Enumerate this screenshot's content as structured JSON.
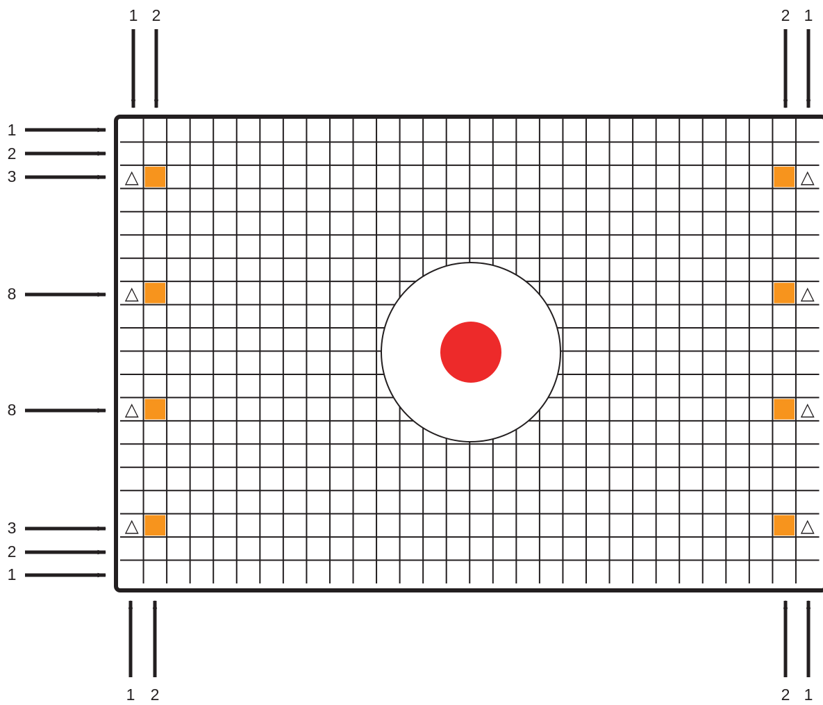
{
  "colors": {
    "grid_line": "#231f20",
    "frame": "#231f20",
    "arrow": "#231f20",
    "marker_fill": "#f7941d",
    "target_dot": "#ed2a2a",
    "background": "#ffffff"
  },
  "grid": {
    "columns": 30,
    "rows": 20
  },
  "top_labels": {
    "left_outer": "1",
    "left_inner": "2",
    "right_inner": "2",
    "right_outer": "1"
  },
  "bottom_labels": {
    "left_outer": "1",
    "left_inner": "2",
    "right_inner": "2",
    "right_outer": "1"
  },
  "left_labels": [
    "1",
    "2",
    "3",
    "8",
    "8",
    "3",
    "2",
    "1"
  ],
  "marker_symbol": "△",
  "marker_rows": [
    3,
    8,
    13,
    18
  ],
  "icons": {
    "arrow": "arrow-right-icon",
    "triangle": "triangle-outline-icon",
    "marker": "orange-square-marker",
    "target": "circle-target"
  }
}
